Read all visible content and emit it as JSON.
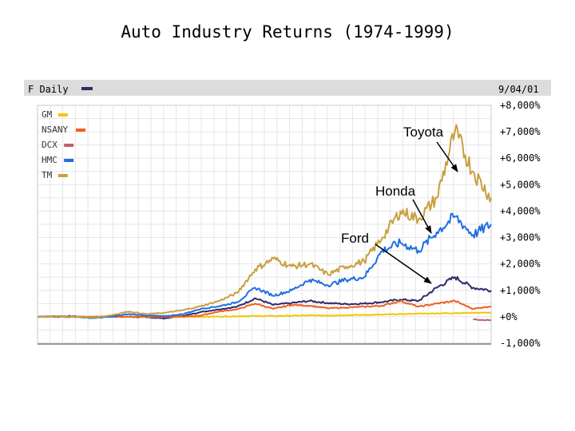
{
  "slide": {
    "title": "Auto Industry Returns (1974-1999)"
  },
  "chart_header": {
    "left_label": "F Daily",
    "left_swatch": "#2c2c6c",
    "date": "9/04/01",
    "header_bg": "#dcdcdc"
  },
  "chart_data": {
    "type": "line",
    "title": "Auto Industry Returns (1974-1999)",
    "x_range": [
      1974,
      1999
    ],
    "ylim": [
      -1000,
      8000
    ],
    "y_unit": "%",
    "y_ticks": [
      8000,
      7000,
      6000,
      5000,
      4000,
      3000,
      2000,
      1000,
      0,
      -1000
    ],
    "y_tick_labels": [
      "+8,000%",
      "+7,000%",
      "+6,000%",
      "+5,000%",
      "+4,000%",
      "+3,000%",
      "+2,000%",
      "+1,000%",
      "+0%",
      "-1,000%"
    ],
    "grid": true,
    "legend_position": "top-left",
    "x": [
      1974,
      1975,
      1976,
      1977,
      1978,
      1979,
      1980,
      1981,
      1982,
      1983,
      1984,
      1985,
      1986,
      1987,
      1988,
      1989,
      1990,
      1991,
      1992,
      1993,
      1994,
      1995,
      1996,
      1997,
      1998,
      1999
    ],
    "series": [
      {
        "name": "F",
        "color": "#2c2c6c",
        "values": [
          0,
          20,
          20,
          -30,
          10,
          0,
          -20,
          -60,
          30,
          180,
          280,
          380,
          700,
          450,
          520,
          600,
          520,
          480,
          500,
          560,
          650,
          600,
          1100,
          1500,
          1100,
          1000
        ]
      },
      {
        "name": "GM",
        "color": "#f0c800",
        "values": [
          0,
          0,
          0,
          0,
          0,
          0,
          0,
          0,
          0,
          0,
          10,
          20,
          30,
          30,
          40,
          50,
          50,
          60,
          70,
          80,
          100,
          120,
          130,
          140,
          150,
          160
        ]
      },
      {
        "name": "NSANY",
        "color": "#f06020",
        "values": [
          0,
          0,
          0,
          0,
          0,
          0,
          0,
          0,
          0,
          50,
          200,
          280,
          500,
          300,
          450,
          420,
          320,
          350,
          380,
          420,
          600,
          380,
          500,
          600,
          300,
          400
        ]
      },
      {
        "name": "DCX",
        "color": "#c06070",
        "values": [
          null,
          null,
          null,
          null,
          null,
          null,
          null,
          null,
          null,
          null,
          null,
          null,
          null,
          null,
          null,
          null,
          null,
          null,
          null,
          null,
          null,
          null,
          null,
          null,
          -100,
          -130
        ]
      },
      {
        "name": "HMC",
        "color": "#2070e0",
        "values": [
          0,
          10,
          0,
          -50,
          0,
          100,
          50,
          20,
          100,
          300,
          400,
          550,
          1100,
          800,
          1000,
          1400,
          1200,
          1400,
          1500,
          2500,
          2800,
          2500,
          3200,
          3800,
          3100,
          3500
        ]
      },
      {
        "name": "TM",
        "color": "#c8a040",
        "values": [
          0,
          20,
          0,
          -30,
          50,
          200,
          100,
          150,
          250,
          400,
          600,
          900,
          1800,
          2200,
          1900,
          2000,
          1600,
          1900,
          2100,
          3000,
          4000,
          3700,
          4500,
          7000,
          5500,
          4500
        ]
      }
    ]
  },
  "legend": {
    "items": [
      {
        "label": "GM",
        "color": "#f0c800"
      },
      {
        "label": "NSANY",
        "color": "#f06020"
      },
      {
        "label": "DCX",
        "color": "#c06070"
      },
      {
        "label": "HMC",
        "color": "#2070e0"
      },
      {
        "label": "TM",
        "color": "#c8a040"
      }
    ]
  },
  "annotations": [
    {
      "label": "Toyota",
      "series": "TM"
    },
    {
      "label": "Honda",
      "series": "HMC"
    },
    {
      "label": "Ford",
      "series": "F"
    }
  ]
}
